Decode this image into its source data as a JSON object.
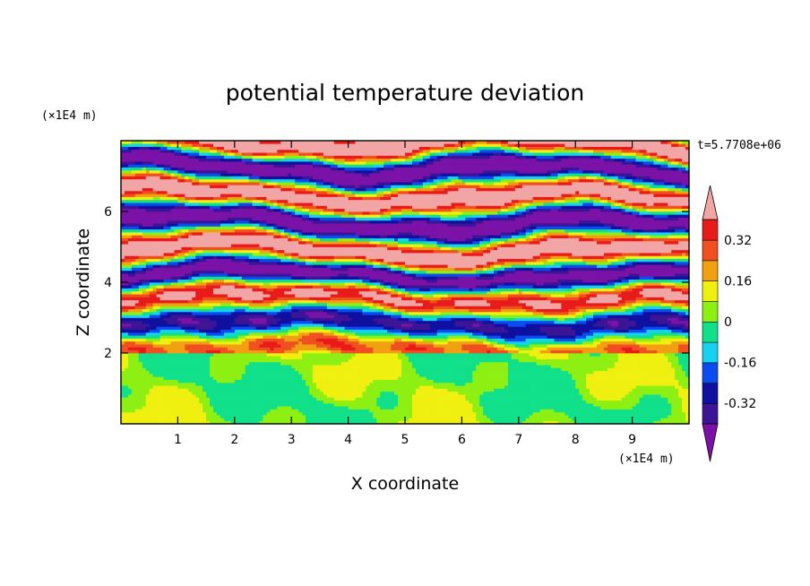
{
  "chart_data": {
    "type": "heatmap",
    "title": "potential temperature deviation",
    "xlabel": "X coordinate",
    "ylabel": "Z coordinate",
    "x_unit": "(×1E4 m)",
    "y_unit": "(×1E4 m)",
    "time_label": "t=5.7708e+06",
    "xlim": [
      0,
      10
    ],
    "ylim": [
      0,
      8
    ],
    "x_ticks": [
      "1",
      "2",
      "3",
      "4",
      "5",
      "6",
      "7",
      "8",
      "9"
    ],
    "y_ticks": [
      "2",
      "4",
      "6"
    ],
    "colorbar": {
      "levels": [
        -0.4,
        -0.32,
        -0.24,
        -0.16,
        -0.08,
        0,
        0.08,
        0.16,
        0.24,
        0.32,
        0.4
      ],
      "labels": [
        "0.32",
        "0.16",
        "0",
        "-0.16",
        "-0.32"
      ],
      "colors_low_to_high": [
        "#7b12a8",
        "#3c1496",
        "#0f10a0",
        "#0a4cf0",
        "#16d2f0",
        "#10e08a",
        "#8ef012",
        "#f0f010",
        "#f0a010",
        "#f05020",
        "#e81a1a",
        "#f2a5a5"
      ],
      "extend": "both"
    },
    "layers": [
      {
        "z_range": [
          0,
          2
        ],
        "dominant_values": [
          0,
          0.08
        ],
        "pattern": "smooth"
      },
      {
        "z_range": [
          2,
          4.5
        ],
        "dominant_values": [
          -0.32,
          0.32
        ],
        "pattern": "banded"
      },
      {
        "z_range": [
          4.5,
          8
        ],
        "dominant_values": [
          -0.4,
          0.4
        ],
        "pattern": "strong stripes"
      }
    ]
  }
}
